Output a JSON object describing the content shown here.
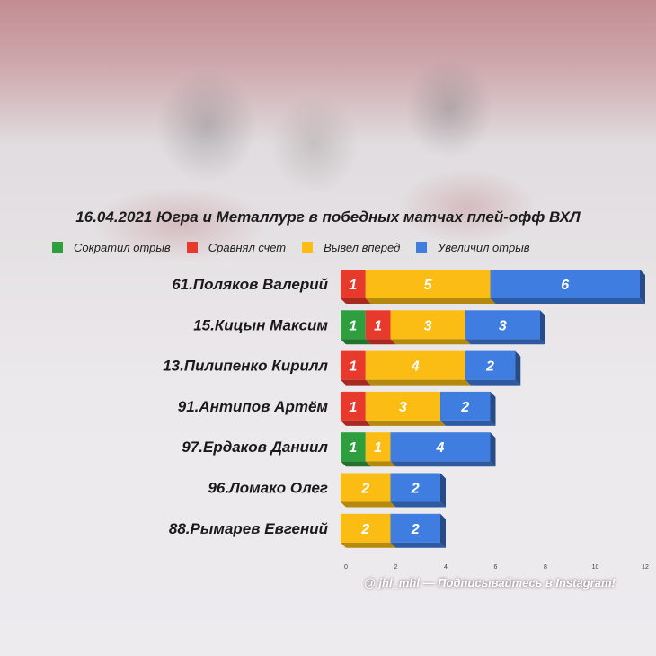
{
  "chart_data": {
    "type": "bar",
    "stacked": true,
    "orientation": "horizontal",
    "title": "16.04.2021 Югра и Металлург в победных матчах плей-офф ВХЛ",
    "categories": [
      "61.Поляков Валерий",
      "15.Кицын Максим",
      "13.Пилипенко Кирилл",
      "91.Антипов Артём",
      "97.Ердаков Даниил",
      "96.Ломако Олег",
      "88.Рымарев Евгений"
    ],
    "series": [
      {
        "name": "Сократил отрыв",
        "color": "#2e9e3e",
        "values": [
          0,
          1,
          0,
          0,
          1,
          0,
          0
        ]
      },
      {
        "name": "Сравнял счет",
        "color": "#e8392d",
        "values": [
          1,
          1,
          1,
          1,
          0,
          0,
          0
        ]
      },
      {
        "name": "Вывел вперед",
        "color": "#fbbd14",
        "values": [
          5,
          3,
          4,
          3,
          1,
          2,
          2
        ]
      },
      {
        "name": "Увеличил отрыв",
        "color": "#3f7de0",
        "values": [
          6,
          3,
          2,
          2,
          4,
          2,
          2
        ]
      }
    ],
    "xlim": [
      0,
      12
    ],
    "xticks": [
      0,
      2,
      4,
      6,
      8,
      10,
      12
    ],
    "legend_position": "top"
  },
  "footer": "@ jhl_mhl — Подписывайтесь в Instagram!"
}
